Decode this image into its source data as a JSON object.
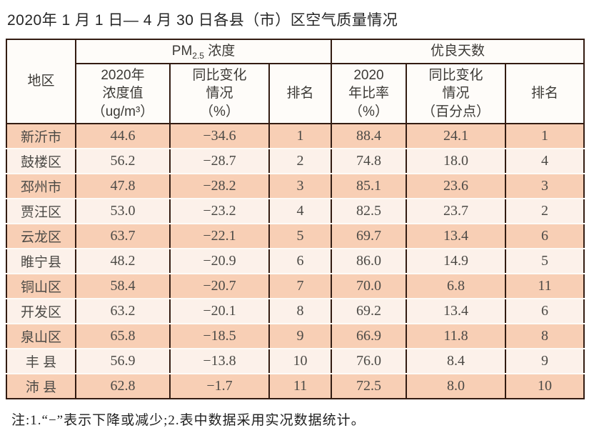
{
  "title": "2020年 1 月 1 日— 4 月 30 日各县（市）区空气质量情况",
  "table": {
    "region_header": "地区",
    "pm_group": {
      "prefix": "PM",
      "sub": "2.5",
      "suffix": " 浓度"
    },
    "good_days_group": "优良天数",
    "pm_cols": {
      "value": "2020年\n浓度值\n（ug/m³）",
      "change": "同比变化\n情况\n（%）",
      "rank": "排名"
    },
    "good_cols": {
      "rate": "2020\n年比率\n（%）",
      "change": "同比变化\n情况\n（百分点）",
      "rank": "排名"
    },
    "rows": [
      {
        "region": "新沂市",
        "pm_value": "44.6",
        "pm_change": "−34.6",
        "pm_rank": "1",
        "good_rate": "88.4",
        "good_change": "24.1",
        "good_rank": "1"
      },
      {
        "region": "鼓楼区",
        "pm_value": "56.2",
        "pm_change": "−28.7",
        "pm_rank": "2",
        "good_rate": "74.8",
        "good_change": "18.0",
        "good_rank": "4"
      },
      {
        "region": "邳州市",
        "pm_value": "47.8",
        "pm_change": "−28.2",
        "pm_rank": "3",
        "good_rate": "85.1",
        "good_change": "23.6",
        "good_rank": "3"
      },
      {
        "region": "贾汪区",
        "pm_value": "53.0",
        "pm_change": "−23.2",
        "pm_rank": "4",
        "good_rate": "82.5",
        "good_change": "23.7",
        "good_rank": "2"
      },
      {
        "region": "云龙区",
        "pm_value": "63.7",
        "pm_change": "−22.1",
        "pm_rank": "5",
        "good_rate": "69.7",
        "good_change": "13.4",
        "good_rank": "6"
      },
      {
        "region": "睢宁县",
        "pm_value": "48.2",
        "pm_change": "−20.9",
        "pm_rank": "6",
        "good_rate": "86.0",
        "good_change": "14.9",
        "good_rank": "5"
      },
      {
        "region": "铜山区",
        "pm_value": "58.4",
        "pm_change": "−20.7",
        "pm_rank": "7",
        "good_rate": "70.0",
        "good_change": "6.8",
        "good_rank": "11"
      },
      {
        "region": "开发区",
        "pm_value": "63.2",
        "pm_change": "−20.1",
        "pm_rank": "8",
        "good_rate": "69.2",
        "good_change": "13.4",
        "good_rank": "6"
      },
      {
        "region": "泉山区",
        "pm_value": "65.8",
        "pm_change": "−18.5",
        "pm_rank": "9",
        "good_rate": "66.9",
        "good_change": "11.8",
        "good_rank": "8"
      },
      {
        "region": "丰 县",
        "pm_value": "56.9",
        "pm_change": "−13.8",
        "pm_rank": "10",
        "good_rate": "76.0",
        "good_change": "8.4",
        "good_rank": "9"
      },
      {
        "region": "沛 县",
        "pm_value": "62.8",
        "pm_change": "−1.7",
        "pm_rank": "11",
        "good_rate": "72.5",
        "good_change": "8.0",
        "good_rank": "10"
      }
    ]
  },
  "note": "注:1.“−”表示下降或减少;2.表中数据采用实况数据统计。",
  "colors": {
    "border": "#331c12",
    "row_salmon": "#f8cfb5",
    "row_light": "#fcf1ea",
    "header_bg": "#fefcf9",
    "data_text": "#4c4a46"
  }
}
